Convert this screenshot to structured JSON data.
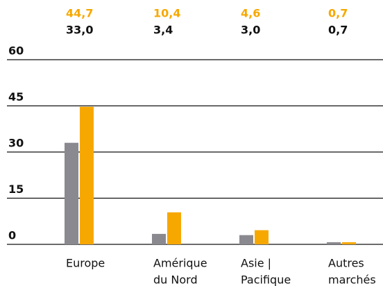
{
  "chart_data": {
    "type": "bar",
    "categories": [
      [
        "Europe"
      ],
      [
        "Amérique",
        "du Nord"
      ],
      [
        "Asie |",
        "Pacifique"
      ],
      [
        "Autres",
        "marchés"
      ]
    ],
    "series": [
      {
        "color": "#8a898f",
        "label_color": "#111111",
        "values": [
          33.0,
          3.4,
          3.0,
          0.7
        ],
        "value_labels": [
          "33,0",
          "3,4",
          "3,0",
          "0,7"
        ]
      },
      {
        "color": "#f7a800",
        "label_color": "#f7a800",
        "values": [
          44.7,
          10.4,
          4.6,
          0.7
        ],
        "value_labels": [
          "44,7",
          "10,4",
          "4,6",
          "0,7"
        ]
      }
    ],
    "ylim": [
      0,
      60
    ],
    "yticks": [
      0,
      15,
      30,
      45,
      60
    ],
    "grid": true
  }
}
